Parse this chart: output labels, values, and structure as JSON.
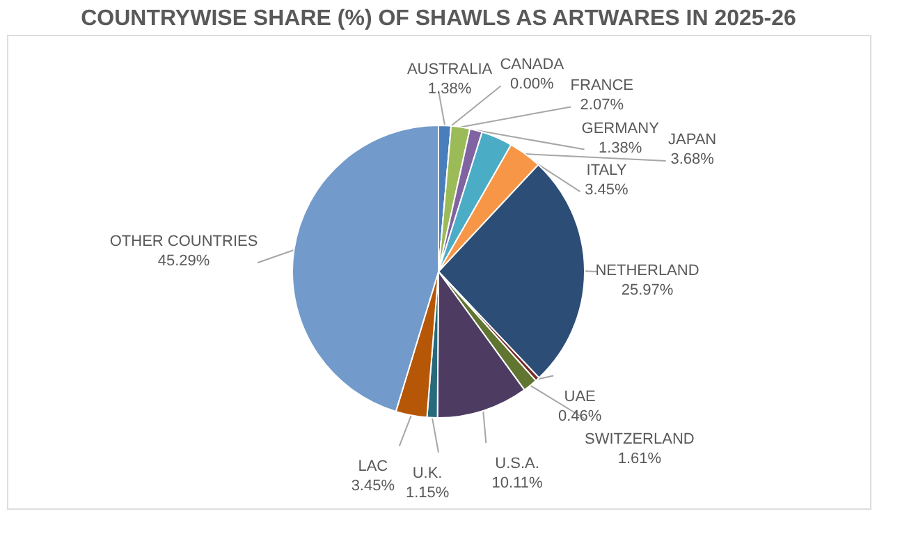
{
  "chart_data": {
    "type": "pie",
    "title": "COUNTRYWISE SHARE (%) OF SHAWLS AS ARTWARES IN 2025-26",
    "categories": [
      "AUSTRALIA",
      "CANADA",
      "FRANCE",
      "GERMANY",
      "ITALY",
      "JAPAN",
      "NETHERLAND",
      "UAE",
      "SWITZERLAND",
      "U.S.A.",
      "U.K.",
      "LAC",
      "OTHER COUNTRIES"
    ],
    "values": [
      1.38,
      0.0,
      2.07,
      1.38,
      3.45,
      3.68,
      25.97,
      0.46,
      1.61,
      10.11,
      1.15,
      3.45,
      45.29
    ],
    "value_labels": [
      "1.38%",
      "0.00%",
      "2.07%",
      "1.38%",
      "3.45%",
      "3.68%",
      "25.97%",
      "0.46%",
      "1.61%",
      "10.11%",
      "1.15%",
      "3.45%",
      "45.29%"
    ],
    "colors": [
      "#4a7ebb",
      "#f79646",
      "#9bbb59",
      "#8064a2",
      "#4bacc6",
      "#f79646",
      "#2c4d75",
      "#772c2a",
      "#5f7530",
      "#4d3b62",
      "#276a7c",
      "#b65708",
      "#729aca"
    ]
  }
}
